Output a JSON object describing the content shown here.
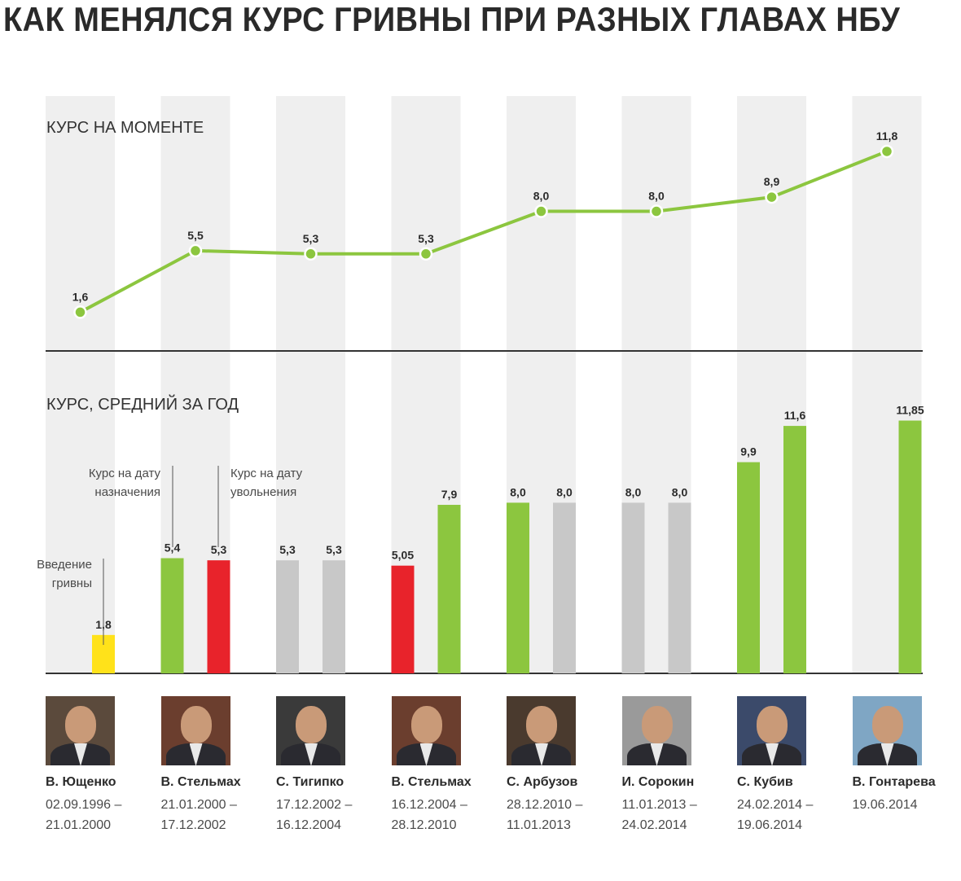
{
  "title": "КАК МЕНЯЛСЯ КУРС ГРИВНЫ ПРИ РАЗНЫХ ГЛАВАХ НБУ",
  "colors": {
    "green": "#8cc63f",
    "red": "#e8232b",
    "gray": "#c8c8c8",
    "yellow": "#ffe21a",
    "band": "#efefef",
    "axis": "#333333"
  },
  "annotations": {
    "intro": [
      "Введение",
      "гривны"
    ],
    "appointment": [
      "Курс на дату",
      "назначения"
    ],
    "dismissal": [
      "Курс на дату",
      "увольнения"
    ]
  },
  "chart_data": [
    {
      "type": "line",
      "title": "КУРС НА МОМЕНТЕ",
      "categories": [
        "В. Ющенко",
        "В. Стельмах",
        "С. Тигипко",
        "В. Стельмах",
        "С. Арбузов",
        "И. Сорокин",
        "С. Кубив",
        "В. Гонтарева"
      ],
      "values": [
        1.6,
        5.5,
        5.3,
        5.3,
        8.0,
        8.0,
        8.9,
        11.8
      ],
      "labels": [
        "1,6",
        "5,5",
        "5,3",
        "5,3",
        "8,0",
        "8,0",
        "8,9",
        "11,8"
      ],
      "color": "#8cc63f",
      "grid": false
    },
    {
      "type": "bar",
      "title": "КУРС, СРЕДНИЙ ЗА ГОД",
      "bars": [
        {
          "group": 0,
          "slot": "single",
          "value": 1.8,
          "label": "1,8",
          "color": "#ffe21a"
        },
        {
          "group": 1,
          "slot": "left",
          "value": 5.4,
          "label": "5,4",
          "color": "#8cc63f"
        },
        {
          "group": 1,
          "slot": "right",
          "value": 5.3,
          "label": "5,3",
          "color": "#e8232b"
        },
        {
          "group": 2,
          "slot": "left",
          "value": 5.3,
          "label": "5,3",
          "color": "#c8c8c8"
        },
        {
          "group": 2,
          "slot": "right",
          "value": 5.3,
          "label": "5,3",
          "color": "#c8c8c8"
        },
        {
          "group": 3,
          "slot": "left",
          "value": 5.05,
          "label": "5,05",
          "color": "#e8232b"
        },
        {
          "group": 3,
          "slot": "right",
          "value": 7.9,
          "label": "7,9",
          "color": "#8cc63f"
        },
        {
          "group": 4,
          "slot": "left",
          "value": 8.0,
          "label": "8,0",
          "color": "#8cc63f"
        },
        {
          "group": 4,
          "slot": "right",
          "value": 8.0,
          "label": "8,0",
          "color": "#c8c8c8"
        },
        {
          "group": 5,
          "slot": "left",
          "value": 8.0,
          "label": "8,0",
          "color": "#c8c8c8"
        },
        {
          "group": 5,
          "slot": "right",
          "value": 8.0,
          "label": "8,0",
          "color": "#c8c8c8"
        },
        {
          "group": 6,
          "slot": "left",
          "value": 9.9,
          "label": "9,9",
          "color": "#8cc63f"
        },
        {
          "group": 6,
          "slot": "right",
          "value": 11.6,
          "label": "11,6",
          "color": "#8cc63f"
        },
        {
          "group": 7,
          "slot": "single",
          "value": 11.85,
          "label": "11,85",
          "color": "#8cc63f"
        }
      ],
      "ylim": [
        0,
        11.85
      ]
    }
  ],
  "people": [
    {
      "name": "В. Ющенко",
      "dates": "02.09.1996 –\n21.01.2000",
      "photo_tone": "#5b4a3c"
    },
    {
      "name": "В. Стельмах",
      "dates": "21.01.2000 –\n17.12.2002",
      "photo_tone": "#6b3e2e"
    },
    {
      "name": "С. Тигипко",
      "dates": "17.12.2002 –\n16.12.2004",
      "photo_tone": "#3a3a3a"
    },
    {
      "name": "В. Стельмах",
      "dates": "16.12.2004 –\n28.12.2010",
      "photo_tone": "#6b3e2e"
    },
    {
      "name": "С. Арбузов",
      "dates": "28.12.2010 –\n11.01.2013",
      "photo_tone": "#4a3a2e"
    },
    {
      "name": "И. Сорокин",
      "dates": "11.01.2013 –\n24.02.2014",
      "photo_tone": "#9a9a9a"
    },
    {
      "name": "С. Кубив",
      "dates": "24.02.2014 –\n19.06.2014",
      "photo_tone": "#3b4a6a"
    },
    {
      "name": "В. Гонтарева",
      "dates": "19.06.2014",
      "photo_tone": "#7fa6c4"
    }
  ]
}
